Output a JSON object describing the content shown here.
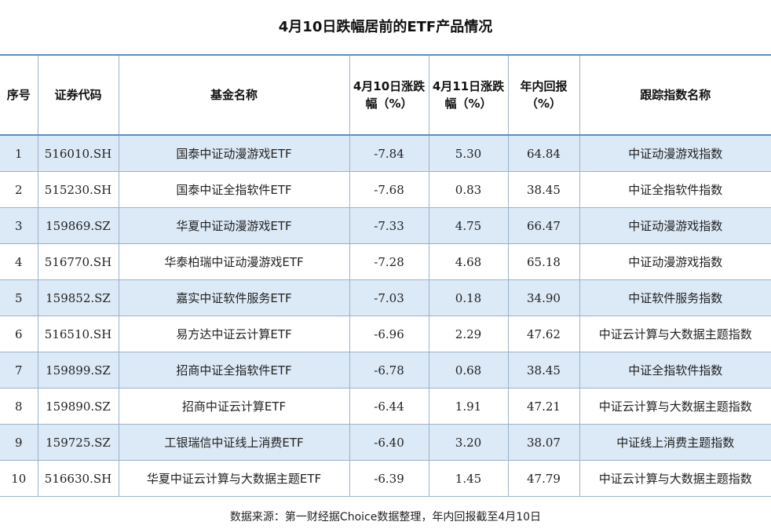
{
  "title": "4月10日跌幅居前的ETF产品情况",
  "headers": {
    "seq": "序号",
    "code": "证券代码",
    "name": "基金名称",
    "chg_0410": "4月10日涨跌幅（%）",
    "chg_0411": "4月11日涨跌幅（%）",
    "ytd": "年内回报（%）",
    "index": "跟踪指数名称"
  },
  "rows": [
    {
      "seq": "1",
      "code": "516010.SH",
      "name": "国泰中证动漫游戏ETF",
      "chg_0410": "-7.84",
      "chg_0411": "5.30",
      "ytd": "64.84",
      "index": "中证动漫游戏指数"
    },
    {
      "seq": "2",
      "code": "515230.SH",
      "name": "国泰中证全指软件ETF",
      "chg_0410": "-7.68",
      "chg_0411": "0.83",
      "ytd": "38.45",
      "index": "中证全指软件指数"
    },
    {
      "seq": "3",
      "code": "159869.SZ",
      "name": "华夏中证动漫游戏ETF",
      "chg_0410": "-7.33",
      "chg_0411": "4.75",
      "ytd": "66.47",
      "index": "中证动漫游戏指数"
    },
    {
      "seq": "4",
      "code": "516770.SH",
      "name": "华泰柏瑞中证动漫游戏ETF",
      "chg_0410": "-7.28",
      "chg_0411": "4.68",
      "ytd": "65.18",
      "index": "中证动漫游戏指数"
    },
    {
      "seq": "5",
      "code": "159852.SZ",
      "name": "嘉实中证软件服务ETF",
      "chg_0410": "-7.03",
      "chg_0411": "0.18",
      "ytd": "34.90",
      "index": "中证软件服务指数"
    },
    {
      "seq": "6",
      "code": "516510.SH",
      "name": "易方达中证云计算ETF",
      "chg_0410": "-6.96",
      "chg_0411": "2.29",
      "ytd": "47.62",
      "index": "中证云计算与大数据主题指数"
    },
    {
      "seq": "7",
      "code": "159899.SZ",
      "name": "招商中证全指软件ETF",
      "chg_0410": "-6.78",
      "chg_0411": "0.68",
      "ytd": "38.45",
      "index": "中证全指软件指数"
    },
    {
      "seq": "8",
      "code": "159890.SZ",
      "name": "招商中证云计算ETF",
      "chg_0410": "-6.44",
      "chg_0411": "1.91",
      "ytd": "47.21",
      "index": "中证云计算与大数据主题指数"
    },
    {
      "seq": "9",
      "code": "159725.SZ",
      "name": "工银瑞信中证线上消费ETF",
      "chg_0410": "-6.40",
      "chg_0411": "3.20",
      "ytd": "38.07",
      "index": "中证线上消费主题指数"
    },
    {
      "seq": "10",
      "code": "516630.SH",
      "name": "华夏中证云计算与大数据主题ETF",
      "chg_0410": "-6.39",
      "chg_0411": "1.45",
      "ytd": "47.79",
      "index": "中证云计算与大数据主题指数"
    }
  ],
  "footnote": "数据来源：第一财经据Choice数据整理，年内回报截至4月10日",
  "colors": {
    "header_border": "#5b8fc4",
    "row_stripe": "#dce9f6",
    "grid": "#9bb3c9"
  }
}
